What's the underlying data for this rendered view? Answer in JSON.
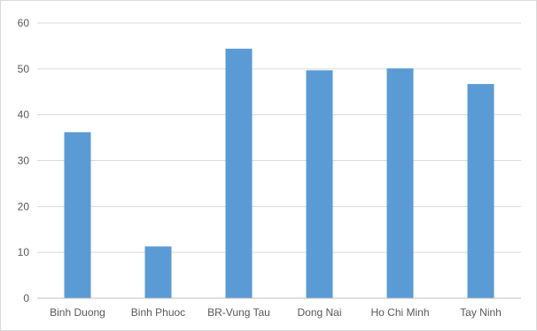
{
  "chart_data": {
    "type": "bar",
    "categories": [
      "Binh Duong",
      "Binh Phuoc",
      "BR-Vung Tau",
      "Dong Nai",
      "Ho Chi Minh",
      "Tay Ninh"
    ],
    "values": [
      36.2,
      11.3,
      54.4,
      49.7,
      50.1,
      46.7
    ],
    "ylim": [
      0,
      60
    ],
    "yticks": [
      0,
      10,
      20,
      30,
      40,
      50,
      60
    ],
    "yticks_labels": [
      "0",
      "10",
      "20",
      "30",
      "40",
      "50",
      "60"
    ],
    "grid": true,
    "legend": "none",
    "colors": {
      "bar": "#5b9bd5",
      "grid": "#d9d9d9",
      "axis": "#bfbfbf",
      "label": "#595959"
    }
  }
}
